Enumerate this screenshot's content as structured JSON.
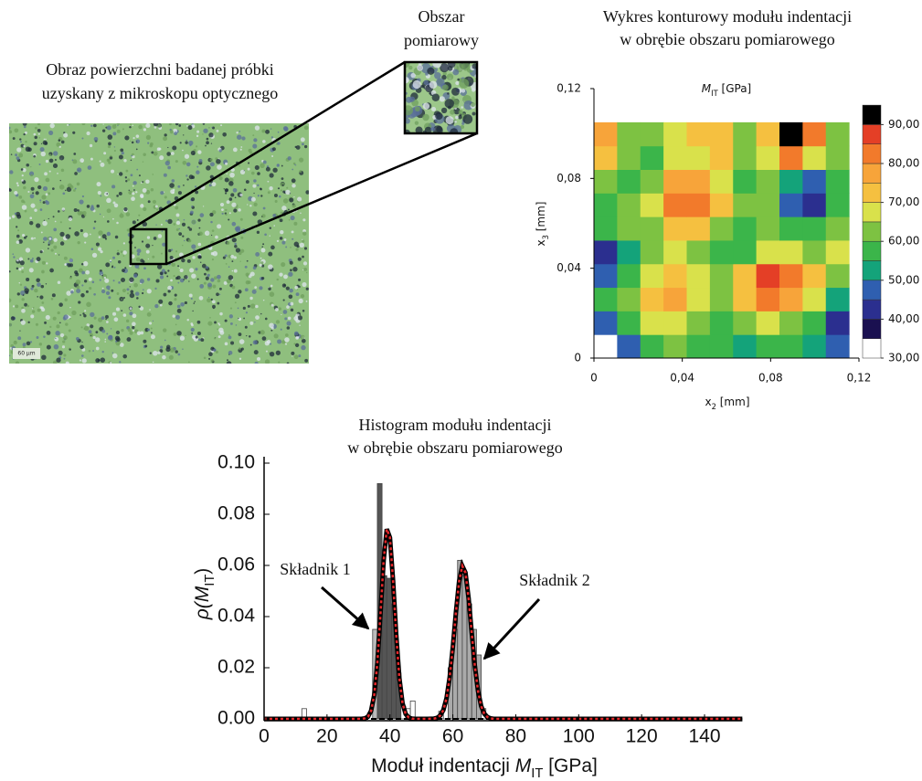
{
  "image": {
    "caption": [
      "Obraz powierzchni badanej próbki",
      "uzyskany z mikroskopu optycznego"
    ],
    "inset_caption": [
      "Obszar",
      "pomiarowy"
    ],
    "scale_bar": "60 µm"
  },
  "chart_data": [
    {
      "type": "contour",
      "title": [
        "Wykres konturowy modułu indentacji",
        "w obrębie obszaru pomiarowego"
      ],
      "subtitle": [
        "M",
        "IT",
        " [GPa]"
      ],
      "xlabel": [
        "x",
        "2",
        " [mm]"
      ],
      "ylabel": [
        "x",
        "3",
        " [mm]"
      ],
      "xlim": [
        0,
        0.12
      ],
      "ylim": [
        0,
        0.12
      ],
      "xticks": [
        0,
        {
          "value": 0.04,
          "label": "0,04"
        },
        {
          "value": 0.08,
          "label": "0,08"
        },
        {
          "value": 0.12,
          "label": "0,12"
        }
      ],
      "yticks": [
        0,
        {
          "value": 0.04,
          "label": "0,04"
        },
        {
          "value": 0.08,
          "label": "0,08"
        },
        {
          "value": 0.12,
          "label": "0,12"
        }
      ],
      "xedges": [
        0,
        0.0105,
        0.021,
        0.0315,
        0.042,
        0.0525,
        0.063,
        0.0735,
        0.084,
        0.0945,
        0.105,
        0.1155
      ],
      "yedges": [
        0,
        0.0105,
        0.021,
        0.0315,
        0.042,
        0.0525,
        0.063,
        0.0735,
        0.084,
        0.0945,
        0.105
      ],
      "z": [
        [
          32,
          48,
          58,
          62,
          58,
          55,
          52,
          58,
          55,
          50,
          45
        ],
        [
          45,
          58,
          65,
          68,
          62,
          58,
          62,
          68,
          62,
          55,
          42
        ],
        [
          55,
          62,
          72,
          75,
          68,
          62,
          70,
          82,
          75,
          65,
          50
        ],
        [
          45,
          58,
          68,
          72,
          65,
          60,
          72,
          88,
          80,
          70,
          62
        ],
        [
          40,
          52,
          60,
          65,
          62,
          58,
          55,
          65,
          68,
          62,
          65
        ],
        [
          55,
          60,
          62,
          70,
          72,
          62,
          55,
          60,
          55,
          58,
          62
        ],
        [
          58,
          62,
          68,
          80,
          82,
          70,
          60,
          62,
          45,
          40,
          55
        ],
        [
          62,
          58,
          62,
          75,
          78,
          65,
          58,
          60,
          52,
          45,
          55
        ],
        [
          72,
          60,
          58,
          65,
          68,
          72,
          60,
          65,
          82,
          65,
          62
        ],
        [
          75,
          62,
          60,
          68,
          72,
          70,
          62,
          72,
          92,
          82,
          60
        ]
      ],
      "levels": [
        30,
        35,
        40,
        45,
        50,
        55,
        60,
        65,
        70,
        75,
        80,
        85,
        90,
        95
      ],
      "colors": [
        "#ffffff",
        "#1a1050",
        "#2b2f8f",
        "#2f5fb0",
        "#14a37a",
        "#3bb54a",
        "#7dc242",
        "#d9e14b",
        "#f5c040",
        "#f7a43a",
        "#f27a2b",
        "#e43f26",
        "#000000"
      ],
      "colorbar_ticks": [
        {
          "value": 30,
          "label": "30,00"
        },
        {
          "value": 40,
          "label": "40,00"
        },
        {
          "value": 50,
          "label": "50,00"
        },
        {
          "value": 60,
          "label": "60,00"
        },
        {
          "value": 70,
          "label": "70,00"
        },
        {
          "value": 80,
          "label": "80,00"
        },
        {
          "value": 90,
          "label": "90,00"
        }
      ]
    },
    {
      "type": "histogram",
      "title": [
        "Histogram modułu indentacji",
        "w obrębie obszaru pomiarowego"
      ],
      "xlabel": [
        "Moduł indentacji ",
        "M",
        "IT",
        " [GPa]"
      ],
      "ylabel": [
        "ρ(",
        "M",
        "IT",
        ")"
      ],
      "annotations": [
        "Składnik 1",
        "Składnik 2"
      ],
      "bins": [
        10.5,
        12,
        13.5,
        15,
        16.5,
        18,
        19.5,
        21,
        22.5,
        24,
        25.5,
        27,
        28.5,
        30,
        31.5,
        33,
        34.5,
        36,
        37.5,
        39,
        40.5,
        42,
        43.5,
        45,
        46.5,
        48,
        49.5,
        51,
        52.5,
        54,
        55.5,
        57,
        58.5,
        60,
        61.5,
        63,
        64.5,
        66,
        67.5,
        69,
        70.5
      ],
      "counts": [
        0,
        0.004,
        0,
        0,
        0,
        0,
        0,
        0,
        0,
        0,
        0,
        0,
        0,
        0,
        0,
        0,
        0.035,
        0.092,
        0.056,
        0.055,
        0.045,
        0.018,
        0.005,
        0.004,
        0.007,
        0,
        0,
        0,
        0,
        0,
        0.003,
        0.006,
        0.02,
        0.035,
        0.062,
        0.056,
        0.045,
        0.035,
        0.025,
        0.004
      ],
      "bar_colors": [
        "#ffffff",
        "#ffffff",
        "#ffffff",
        "#ffffff",
        "#ffffff",
        "#ffffff",
        "#ffffff",
        "#ffffff",
        "#ffffff",
        "#ffffff",
        "#ffffff",
        "#ffffff",
        "#ffffff",
        "#ffffff",
        "#ffffff",
        "#ffffff",
        "#bbbbbb",
        "#555555",
        "#555555",
        "#555555",
        "#555555",
        "#555555",
        "#ffffff",
        "#ffffff",
        "#ffffff",
        "#ffffff",
        "#ffffff",
        "#ffffff",
        "#ffffff",
        "#ffffff",
        "#ffffff",
        "#ffffff",
        "#aaaaaa",
        "#aaaaaa",
        "#aaaaaa",
        "#aaaaaa",
        "#aaaaaa",
        "#aaaaaa",
        "#aaaaaa",
        "#ffffff"
      ],
      "fit": {
        "color": "#e8282b",
        "outline": "#000000",
        "x": [
          0,
          30,
          31,
          32,
          33,
          34,
          35,
          36,
          37,
          38,
          39,
          40,
          41,
          42,
          43,
          44,
          45,
          46,
          47,
          48,
          50,
          52,
          54,
          55,
          56,
          57,
          58,
          59,
          60,
          61,
          62,
          63,
          64,
          65,
          66,
          67,
          68,
          69,
          70,
          71,
          72,
          73,
          152
        ],
        "y": [
          0,
          0,
          0,
          0.0002,
          0.0008,
          0.0031,
          0.0092,
          0.0218,
          0.0412,
          0.0619,
          0.0742,
          0.0709,
          0.054,
          0.0328,
          0.0159,
          0.0061,
          0.0019,
          0.0005,
          0.0001,
          0,
          0,
          0,
          0.0001,
          0.0004,
          0.0013,
          0.0035,
          0.0081,
          0.0163,
          0.0281,
          0.0419,
          0.0539,
          0.0598,
          0.0572,
          0.0472,
          0.0336,
          0.0206,
          0.0109,
          0.005,
          0.002,
          0.0007,
          0.0002,
          0,
          0
        ]
      },
      "xlim": [
        0,
        152
      ],
      "ylim": [
        0,
        0.1
      ],
      "xticks": [
        0,
        20,
        40,
        60,
        80,
        100,
        120,
        140
      ],
      "yticks": [
        {
          "value": 0,
          "label": "0.00"
        },
        {
          "value": 0.02,
          "label": "0.02"
        },
        {
          "value": 0.04,
          "label": "0.04"
        },
        {
          "value": 0.06,
          "label": "0.06"
        },
        {
          "value": 0.08,
          "label": "0.08"
        },
        {
          "value": 0.1,
          "label": "0.10"
        }
      ]
    }
  ]
}
